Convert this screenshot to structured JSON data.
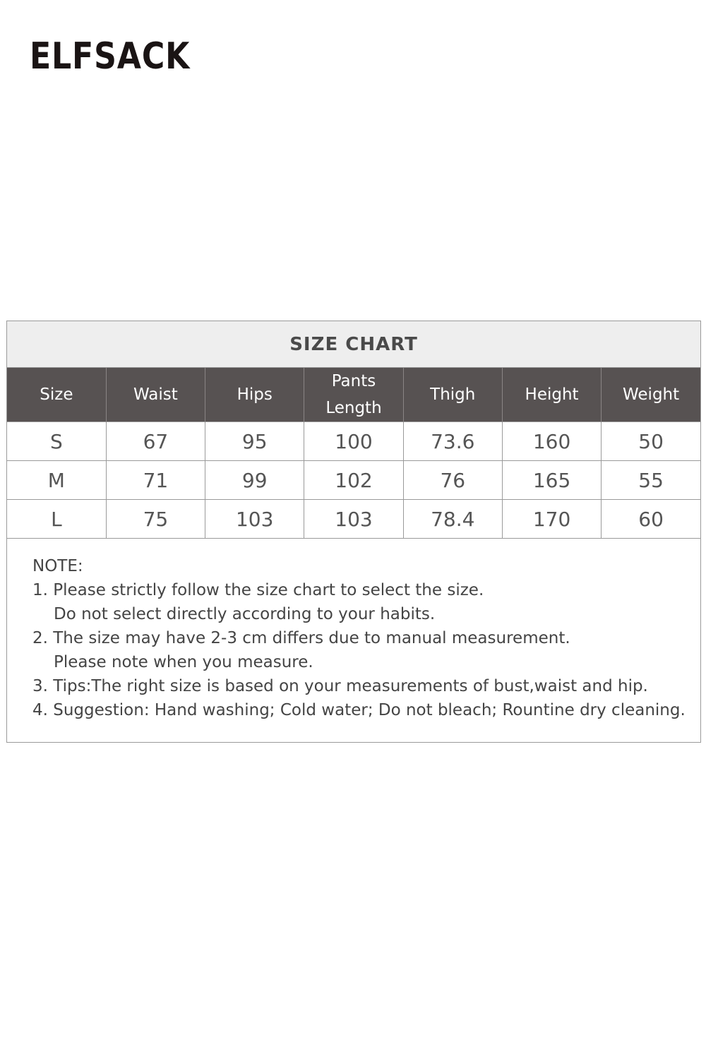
{
  "brand": {
    "logo_text": "ELFSACK"
  },
  "size_chart": {
    "title": "SIZE CHART",
    "headers": [
      "Size",
      "Waist",
      "Hips",
      "Pants Length",
      "Thigh",
      "Height",
      "Weight"
    ],
    "rows": [
      [
        "S",
        "67",
        "95",
        "100",
        "73.6",
        "160",
        "50"
      ],
      [
        "M",
        "71",
        "99",
        "102",
        "76",
        "165",
        "55"
      ],
      [
        "L",
        "75",
        "103",
        "103",
        "78.4",
        "170",
        "60"
      ]
    ]
  },
  "notes": {
    "heading": "NOTE:",
    "lines": [
      "1. Please strictly follow the size chart to select the size.",
      "Do not select directly according to your habits.",
      "2. The size may have 2-3 cm differs due to manual measurement.",
      "Please note when you measure.",
      "3. Tips:The right size is based on your measurements of bust,waist and hip.",
      "4. Suggestion: Hand washing; Cold water; Do not bleach; Rountine dry cleaning."
    ]
  }
}
